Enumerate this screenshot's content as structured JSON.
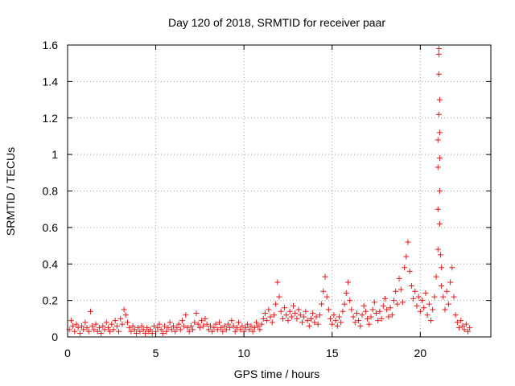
{
  "chart_data": {
    "type": "scatter",
    "title": "Day 120 of 2018, SRMTID for receiver paar",
    "xlabel": "GPS time / hours",
    "ylabel": "SRMTID / TECUs",
    "xlim": [
      0,
      24
    ],
    "ylim": [
      0,
      1.6
    ],
    "xticks": [
      0,
      5,
      10,
      15,
      20
    ],
    "xtick_labels": [
      "0",
      "5",
      "10",
      "15",
      "20"
    ],
    "yticks": [
      0,
      0.2,
      0.4,
      0.6,
      0.8,
      1,
      1.2,
      1.4,
      1.6
    ],
    "ytick_labels": [
      "0",
      "0.2",
      "0.4",
      "0.6",
      "0.8",
      "1",
      "1.2",
      "1.4",
      "1.6"
    ],
    "grid": true,
    "marker": "+",
    "series": [
      {
        "name": "SRMTID",
        "color": "#e31a1c",
        "points": [
          [
            0.1,
            0.04
          ],
          [
            0.2,
            0.09
          ],
          [
            0.3,
            0.06
          ],
          [
            0.4,
            0.03
          ],
          [
            0.5,
            0.07
          ],
          [
            0.6,
            0.05
          ],
          [
            0.7,
            0.02
          ],
          [
            0.8,
            0.06
          ],
          [
            0.9,
            0.04
          ],
          [
            1.0,
            0.08
          ],
          [
            1.1,
            0.05
          ],
          [
            1.2,
            0.03
          ],
          [
            1.3,
            0.14
          ],
          [
            1.4,
            0.06
          ],
          [
            1.5,
            0.04
          ],
          [
            1.6,
            0.07
          ],
          [
            1.7,
            0.03
          ],
          [
            1.8,
            0.05
          ],
          [
            1.9,
            0.02
          ],
          [
            2.0,
            0.06
          ],
          [
            2.1,
            0.04
          ],
          [
            2.2,
            0.08
          ],
          [
            2.3,
            0.05
          ],
          [
            2.4,
            0.03
          ],
          [
            2.5,
            0.07
          ],
          [
            2.6,
            0.04
          ],
          [
            2.7,
            0.09
          ],
          [
            2.8,
            0.06
          ],
          [
            2.9,
            0.03
          ],
          [
            3.0,
            0.1
          ],
          [
            3.1,
            0.07
          ],
          [
            3.2,
            0.15
          ],
          [
            3.3,
            0.12
          ],
          [
            3.4,
            0.08
          ],
          [
            3.5,
            0.05
          ],
          [
            3.6,
            0.03
          ],
          [
            3.7,
            0.06
          ],
          [
            3.8,
            0.04
          ],
          [
            3.9,
            0.02
          ],
          [
            4.0,
            0.05
          ],
          [
            4.1,
            0.03
          ],
          [
            4.2,
            0.06
          ],
          [
            4.3,
            0.04
          ],
          [
            4.4,
            0.02
          ],
          [
            4.5,
            0.05
          ],
          [
            4.6,
            0.03
          ],
          [
            4.7,
            0.04
          ],
          [
            4.8,
            0.02
          ],
          [
            4.9,
            0.06
          ],
          [
            5.0,
            0.03
          ],
          [
            5.1,
            0.05
          ],
          [
            5.2,
            0.07
          ],
          [
            5.3,
            0.04
          ],
          [
            5.4,
            0.02
          ],
          [
            5.5,
            0.06
          ],
          [
            5.6,
            0.03
          ],
          [
            5.7,
            0.05
          ],
          [
            5.8,
            0.08
          ],
          [
            5.9,
            0.04
          ],
          [
            6.0,
            0.06
          ],
          [
            6.1,
            0.03
          ],
          [
            6.2,
            0.05
          ],
          [
            6.3,
            0.07
          ],
          [
            6.4,
            0.04
          ],
          [
            6.5,
            0.09
          ],
          [
            6.6,
            0.06
          ],
          [
            6.7,
            0.12
          ],
          [
            6.8,
            0.05
          ],
          [
            6.9,
            0.03
          ],
          [
            7.0,
            0.06
          ],
          [
            7.1,
            0.04
          ],
          [
            7.2,
            0.08
          ],
          [
            7.3,
            0.13
          ],
          [
            7.4,
            0.07
          ],
          [
            7.5,
            0.05
          ],
          [
            7.6,
            0.09
          ],
          [
            7.7,
            0.06
          ],
          [
            7.8,
            0.1
          ],
          [
            7.9,
            0.07
          ],
          [
            8.0,
            0.04
          ],
          [
            8.1,
            0.06
          ],
          [
            8.2,
            0.03
          ],
          [
            8.3,
            0.05
          ],
          [
            8.4,
            0.07
          ],
          [
            8.5,
            0.04
          ],
          [
            8.6,
            0.08
          ],
          [
            8.7,
            0.05
          ],
          [
            8.8,
            0.03
          ],
          [
            8.9,
            0.06
          ],
          [
            9.0,
            0.04
          ],
          [
            9.1,
            0.07
          ],
          [
            9.2,
            0.05
          ],
          [
            9.3,
            0.09
          ],
          [
            9.4,
            0.06
          ],
          [
            9.5,
            0.03
          ],
          [
            9.6,
            0.05
          ],
          [
            9.7,
            0.08
          ],
          [
            9.8,
            0.04
          ],
          [
            9.9,
            0.06
          ],
          [
            10.0,
            0.03
          ],
          [
            10.1,
            0.05
          ],
          [
            10.2,
            0.07
          ],
          [
            10.3,
            0.04
          ],
          [
            10.4,
            0.06
          ],
          [
            10.5,
            0.03
          ],
          [
            10.6,
            0.05
          ],
          [
            10.7,
            0.08
          ],
          [
            10.8,
            0.06
          ],
          [
            10.9,
            0.04
          ],
          [
            11.0,
            0.07
          ],
          [
            11.1,
            0.1
          ],
          [
            11.2,
            0.13
          ],
          [
            11.3,
            0.09
          ],
          [
            11.4,
            0.15
          ],
          [
            11.5,
            0.11
          ],
          [
            11.6,
            0.08
          ],
          [
            11.7,
            0.12
          ],
          [
            11.8,
            0.18
          ],
          [
            11.9,
            0.3
          ],
          [
            12.0,
            0.22
          ],
          [
            12.1,
            0.14
          ],
          [
            12.2,
            0.1
          ],
          [
            12.3,
            0.16
          ],
          [
            12.4,
            0.12
          ],
          [
            12.5,
            0.09
          ],
          [
            12.6,
            0.14
          ],
          [
            12.7,
            0.11
          ],
          [
            12.8,
            0.17
          ],
          [
            12.9,
            0.13
          ],
          [
            13.0,
            0.1
          ],
          [
            13.1,
            0.15
          ],
          [
            13.2,
            0.12
          ],
          [
            13.3,
            0.08
          ],
          [
            13.4,
            0.11
          ],
          [
            13.5,
            0.14
          ],
          [
            13.6,
            0.09
          ],
          [
            13.7,
            0.06
          ],
          [
            13.8,
            0.1
          ],
          [
            13.9,
            0.13
          ],
          [
            14.0,
            0.08
          ],
          [
            14.1,
            0.11
          ],
          [
            14.2,
            0.07
          ],
          [
            14.3,
            0.12
          ],
          [
            14.4,
            0.18
          ],
          [
            14.5,
            0.25
          ],
          [
            14.6,
            0.33
          ],
          [
            14.7,
            0.22
          ],
          [
            14.8,
            0.15
          ],
          [
            14.9,
            0.1
          ],
          [
            15.0,
            0.07
          ],
          [
            15.1,
            0.12
          ],
          [
            15.2,
            0.09
          ],
          [
            15.3,
            0.06
          ],
          [
            15.4,
            0.11
          ],
          [
            15.5,
            0.08
          ],
          [
            15.6,
            0.14
          ],
          [
            15.7,
            0.18
          ],
          [
            15.8,
            0.24
          ],
          [
            15.9,
            0.3
          ],
          [
            16.0,
            0.2
          ],
          [
            16.1,
            0.15
          ],
          [
            16.2,
            0.11
          ],
          [
            16.3,
            0.08
          ],
          [
            16.4,
            0.13
          ],
          [
            16.5,
            0.09
          ],
          [
            16.6,
            0.06
          ],
          [
            16.7,
            0.12
          ],
          [
            16.8,
            0.17
          ],
          [
            16.9,
            0.14
          ],
          [
            17.0,
            0.1
          ],
          [
            17.1,
            0.07
          ],
          [
            17.2,
            0.11
          ],
          [
            17.3,
            0.15
          ],
          [
            17.4,
            0.19
          ],
          [
            17.5,
            0.13
          ],
          [
            17.6,
            0.09
          ],
          [
            17.7,
            0.14
          ],
          [
            17.8,
            0.1
          ],
          [
            17.9,
            0.17
          ],
          [
            18.0,
            0.21
          ],
          [
            18.1,
            0.15
          ],
          [
            18.2,
            0.11
          ],
          [
            18.3,
            0.16
          ],
          [
            18.4,
            0.12
          ],
          [
            18.5,
            0.2
          ],
          [
            18.6,
            0.25
          ],
          [
            18.7,
            0.18
          ],
          [
            18.8,
            0.32
          ],
          [
            18.9,
            0.26
          ],
          [
            19.0,
            0.19
          ],
          [
            19.1,
            0.38
          ],
          [
            19.2,
            0.44
          ],
          [
            19.3,
            0.52
          ],
          [
            19.4,
            0.36
          ],
          [
            19.5,
            0.28
          ],
          [
            19.6,
            0.21
          ],
          [
            19.7,
            0.25
          ],
          [
            19.8,
            0.17
          ],
          [
            19.9,
            0.22
          ],
          [
            20.0,
            0.14
          ],
          [
            20.1,
            0.2
          ],
          [
            20.2,
            0.16
          ],
          [
            20.3,
            0.24
          ],
          [
            20.4,
            0.12
          ],
          [
            20.5,
            0.18
          ],
          [
            20.6,
            0.09
          ],
          [
            20.7,
            0.15
          ],
          [
            20.8,
            0.22
          ],
          [
            20.9,
            0.33
          ],
          [
            21.0,
            0.48
          ],
          [
            21.0,
            0.7
          ],
          [
            21.0,
            0.93
          ],
          [
            21.0,
            1.08
          ],
          [
            21.05,
            1.58
          ],
          [
            21.05,
            1.55
          ],
          [
            21.05,
            1.44
          ],
          [
            21.05,
            1.22
          ],
          [
            21.1,
            1.3
          ],
          [
            21.1,
            1.12
          ],
          [
            21.1,
            0.98
          ],
          [
            21.1,
            0.8
          ],
          [
            21.1,
            0.62
          ],
          [
            21.15,
            0.45
          ],
          [
            21.2,
            0.38
          ],
          [
            21.2,
            0.28
          ],
          [
            21.3,
            0.22
          ],
          [
            21.4,
            0.15
          ],
          [
            21.5,
            0.25
          ],
          [
            21.6,
            0.18
          ],
          [
            21.7,
            0.3
          ],
          [
            21.8,
            0.38
          ],
          [
            21.9,
            0.22
          ],
          [
            22.0,
            0.12
          ],
          [
            22.1,
            0.08
          ],
          [
            22.2,
            0.05
          ],
          [
            22.3,
            0.09
          ],
          [
            22.4,
            0.06
          ],
          [
            22.5,
            0.04
          ],
          [
            22.6,
            0.07
          ],
          [
            22.7,
            0.03
          ],
          [
            22.8,
            0.05
          ]
        ]
      }
    ]
  }
}
